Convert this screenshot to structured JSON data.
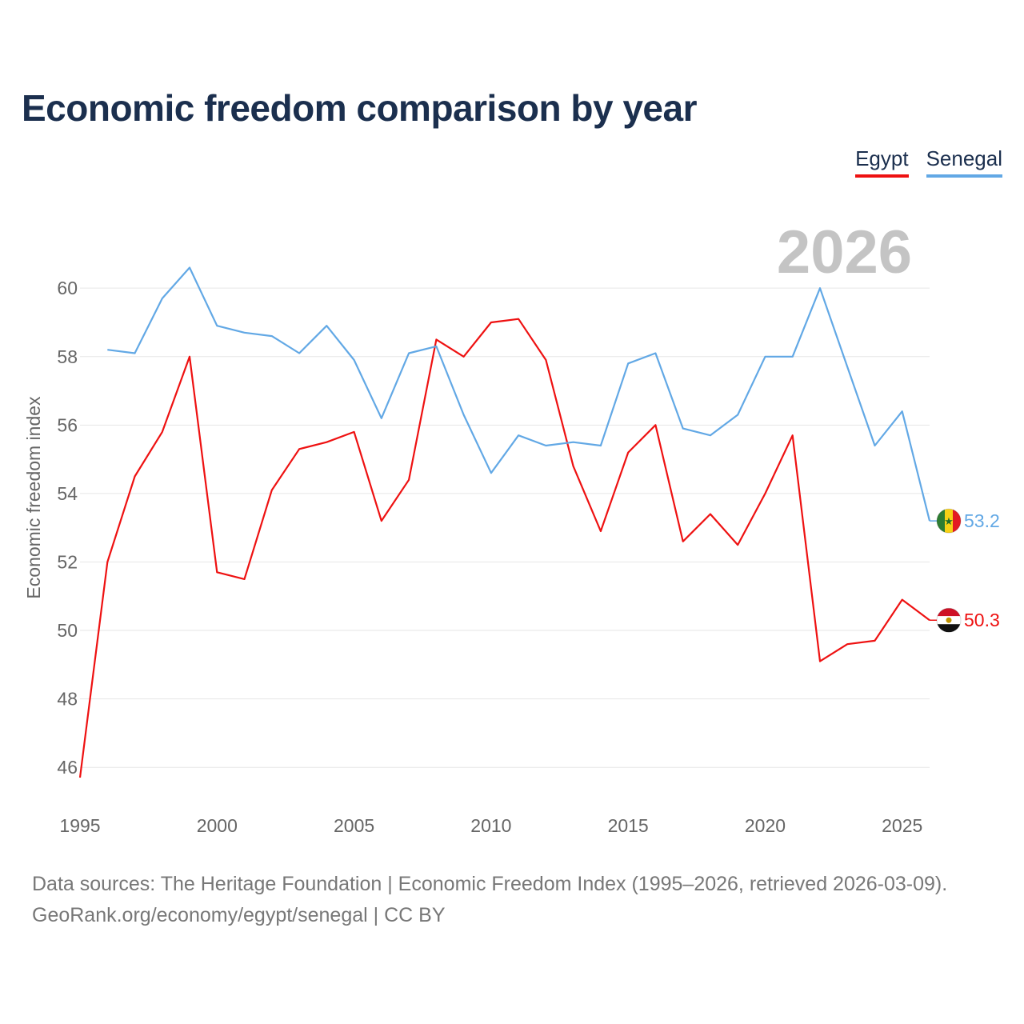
{
  "title": "Economic freedom comparison by year",
  "legend": {
    "egypt": "Egypt",
    "senegal": "Senegal"
  },
  "year_watermark": "2026",
  "colors": {
    "egypt": "#ee1111",
    "senegal": "#62a8e5",
    "title": "#1b2f4e",
    "grid": "#e6e6e6",
    "axis_text": "#666666",
    "watermark": "#c4c4c4"
  },
  "source": {
    "line1": "Data sources: The Heritage Foundation | Economic Freedom Index (1995–2026, retrieved 2026-03-09).",
    "line2": "GeoRank.org/economy/egypt/senegal | CC BY"
  },
  "chart_data": {
    "type": "line",
    "title": "Economic freedom comparison by year",
    "xlabel": "",
    "ylabel": "Economic freedom index",
    "xlim": [
      1995,
      2026
    ],
    "ylim": [
      45,
      61.5
    ],
    "x_ticks": [
      1995,
      2000,
      2005,
      2010,
      2015,
      2020,
      2025
    ],
    "y_ticks": [
      46,
      48,
      50,
      52,
      54,
      56,
      58,
      60
    ],
    "grid": true,
    "legend_position": "top-right",
    "series": [
      {
        "name": "Egypt",
        "color": "#ee1111",
        "end_label": "50.3",
        "flag": "egypt-flag-icon",
        "x": [
          1995,
          1996,
          1997,
          1998,
          1999,
          2000,
          2001,
          2002,
          2003,
          2004,
          2005,
          2006,
          2007,
          2008,
          2009,
          2010,
          2011,
          2012,
          2013,
          2014,
          2015,
          2016,
          2017,
          2018,
          2019,
          2020,
          2021,
          2022,
          2023,
          2024,
          2025,
          2026
        ],
        "values": [
          45.7,
          52.0,
          54.5,
          55.8,
          58.0,
          51.7,
          51.5,
          54.1,
          55.3,
          55.5,
          55.8,
          53.2,
          54.4,
          58.5,
          58.0,
          59.0,
          59.1,
          57.9,
          54.8,
          52.9,
          55.2,
          56.0,
          52.6,
          53.4,
          52.5,
          54.0,
          55.7,
          49.1,
          49.6,
          49.7,
          50.9,
          50.3
        ]
      },
      {
        "name": "Senegal",
        "color": "#62a8e5",
        "end_label": "53.2",
        "flag": "senegal-flag-icon",
        "x": [
          1996,
          1997,
          1998,
          1999,
          2000,
          2001,
          2002,
          2003,
          2004,
          2005,
          2006,
          2007,
          2008,
          2009,
          2010,
          2011,
          2012,
          2013,
          2014,
          2015,
          2016,
          2017,
          2018,
          2019,
          2020,
          2021,
          2022,
          2023,
          2024,
          2025,
          2026
        ],
        "values": [
          58.2,
          58.1,
          59.7,
          60.6,
          58.9,
          58.7,
          58.6,
          58.1,
          58.9,
          57.9,
          56.2,
          58.1,
          58.3,
          56.3,
          54.6,
          55.7,
          55.4,
          55.5,
          55.4,
          57.8,
          58.1,
          55.9,
          55.7,
          56.3,
          58.0,
          58.0,
          60.0,
          57.7,
          55.4,
          56.4,
          53.2
        ]
      }
    ]
  }
}
